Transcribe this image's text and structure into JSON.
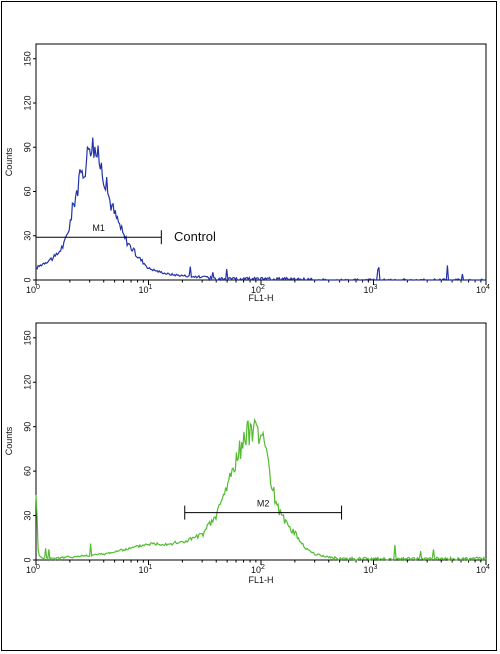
{
  "chart_data": [
    {
      "type": "line",
      "xlabel": "FL1-H",
      "ylabel": "Counts",
      "x_scale": "log",
      "xlim": [
        1,
        10000
      ],
      "ylim": [
        0,
        160
      ],
      "x_tick_labels": [
        "10^0",
        "10^1",
        "10^2",
        "10^3",
        "10^4"
      ],
      "y_ticks": [
        0,
        30,
        60,
        90,
        120,
        150
      ],
      "color": "#2233aa",
      "series": [
        {
          "x": [
            1.0,
            1.2,
            1.5,
            1.8,
            2.0,
            2.2,
            2.5,
            2.8,
            3.0,
            3.3,
            3.6,
            4.0,
            4.5,
            5.0,
            5.5,
            6.0,
            7.0,
            8.0,
            9.0,
            10,
            12,
            15,
            20,
            30,
            50,
            100,
            200,
            400,
            1000,
            10000
          ],
          "y": [
            8,
            12,
            16,
            25,
            38,
            55,
            70,
            80,
            95,
            90,
            82,
            72,
            55,
            45,
            38,
            30,
            22,
            16,
            12,
            8,
            6,
            4,
            3,
            2,
            1,
            1,
            1,
            0,
            0,
            0
          ]
        }
      ],
      "markers": [
        {
          "label": "M1",
          "x_range": [
            1.0,
            13
          ]
        }
      ],
      "annotation": "Control"
    },
    {
      "type": "line",
      "xlabel": "FL1-H",
      "ylabel": "Counts",
      "x_scale": "log",
      "xlim": [
        1,
        10000
      ],
      "ylim": [
        0,
        160
      ],
      "x_tick_labels": [
        "10^0",
        "10^1",
        "10^2",
        "10^3",
        "10^4"
      ],
      "y_ticks": [
        0,
        30,
        60,
        90,
        120,
        150
      ],
      "color": "#55bb33",
      "series": [
        {
          "x": [
            1.0,
            1.05,
            1.2,
            2,
            4,
            7,
            10,
            15,
            20,
            30,
            40,
            50,
            60,
            70,
            80,
            90,
            100,
            110,
            130,
            150,
            200,
            250,
            300,
            400,
            500,
            1000,
            10000
          ],
          "y": [
            48,
            3,
            1,
            2,
            4,
            8,
            11,
            11,
            12,
            17,
            30,
            50,
            68,
            80,
            88,
            92,
            85,
            70,
            45,
            30,
            18,
            8,
            4,
            2,
            1,
            1,
            1
          ]
        }
      ],
      "markers": [
        {
          "label": "M2",
          "x_range": [
            21,
            520
          ]
        }
      ]
    }
  ]
}
